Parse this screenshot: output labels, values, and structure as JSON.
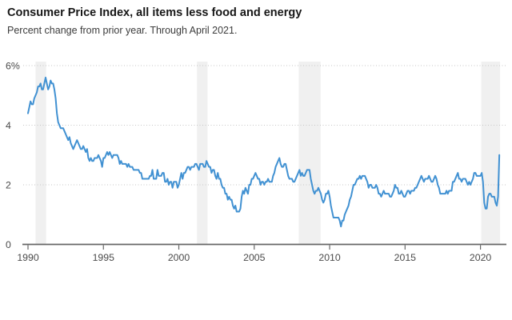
{
  "header": {
    "title": "Consumer Price Index, all items less food and energy",
    "subtitle": "Percent change from prior year. Through April 2021."
  },
  "colors": {
    "line": "#4191d2",
    "recession_band": "#f0f0f0",
    "gridline": "#c6c6c6",
    "axis": "#666666",
    "tick_label": "#4a4a4a",
    "title": "#161616",
    "subtitle": "#3b3b3b",
    "background": "#ffffff"
  },
  "chart_data": {
    "type": "line",
    "title": "Consumer Price Index, all items less food and energy",
    "subtitle": "Percent change from prior year. Through April 2021.",
    "ylabel": "Percent change from prior year",
    "xlabel": "",
    "unit": "%",
    "frequency": "monthly",
    "ylim": [
      0,
      6
    ],
    "y_ticks": [
      0,
      2,
      4,
      6
    ],
    "y_tick_labels": [
      "0",
      "2",
      "4",
      "6%"
    ],
    "x_ticks": [
      1990,
      1995,
      2000,
      2005,
      2010,
      2015,
      2020
    ],
    "x_tick_labels": [
      "1990",
      "1995",
      "2000",
      "2005",
      "2010",
      "2015",
      "2020"
    ],
    "grid": true,
    "legend": "none",
    "recession_bands": [
      [
        1990.5,
        1991.2
      ],
      [
        2001.2,
        2001.9
      ],
      [
        2007.95,
        2009.4
      ],
      [
        2020.05,
        2021.3
      ]
    ],
    "series": [
      {
        "name": "Core CPI, percent change from prior year",
        "start": "1990-01",
        "end": "2021-04",
        "values": [
          4.4,
          4.6,
          4.8,
          4.7,
          4.7,
          4.9,
          5.0,
          5.1,
          5.3,
          5.3,
          5.4,
          5.2,
          5.2,
          5.4,
          5.6,
          5.4,
          5.2,
          5.3,
          5.5,
          5.4,
          5.4,
          5.2,
          4.9,
          4.4,
          4.1,
          4.0,
          3.9,
          3.9,
          3.9,
          3.8,
          3.7,
          3.6,
          3.5,
          3.6,
          3.4,
          3.3,
          3.2,
          3.3,
          3.4,
          3.5,
          3.4,
          3.3,
          3.2,
          3.2,
          3.3,
          3.2,
          3.1,
          3.2,
          2.9,
          2.8,
          2.9,
          2.8,
          2.8,
          2.9,
          2.9,
          2.9,
          3.0,
          2.9,
          2.8,
          2.6,
          2.9,
          2.9,
          3.0,
          3.1,
          3.0,
          3.1,
          3.0,
          2.9,
          3.0,
          3.0,
          3.0,
          3.0,
          2.9,
          2.7,
          2.8,
          2.7,
          2.7,
          2.7,
          2.7,
          2.6,
          2.7,
          2.6,
          2.6,
          2.6,
          2.5,
          2.5,
          2.5,
          2.5,
          2.5,
          2.4,
          2.4,
          2.2,
          2.2,
          2.2,
          2.2,
          2.2,
          2.2,
          2.3,
          2.3,
          2.5,
          2.2,
          2.2,
          2.2,
          2.5,
          2.3,
          2.3,
          2.3,
          2.4,
          2.4,
          2.1,
          2.1,
          2.2,
          2.0,
          2.1,
          2.1,
          1.9,
          2.1,
          2.1,
          2.1,
          1.9,
          2.0,
          2.2,
          2.4,
          2.2,
          2.4,
          2.4,
          2.5,
          2.6,
          2.6,
          2.5,
          2.6,
          2.6,
          2.6,
          2.7,
          2.7,
          2.6,
          2.5,
          2.7,
          2.7,
          2.7,
          2.6,
          2.6,
          2.8,
          2.7,
          2.6,
          2.6,
          2.4,
          2.5,
          2.5,
          2.3,
          2.2,
          2.4,
          2.2,
          2.2,
          2.0,
          1.9,
          1.9,
          1.7,
          1.7,
          1.5,
          1.6,
          1.5,
          1.5,
          1.3,
          1.2,
          1.3,
          1.1,
          1.1,
          1.1,
          1.2,
          1.6,
          1.8,
          1.7,
          1.9,
          1.8,
          1.7,
          2.0,
          2.0,
          2.2,
          2.2,
          2.3,
          2.4,
          2.3,
          2.2,
          2.2,
          2.0,
          2.1,
          2.1,
          2.0,
          2.1,
          2.1,
          2.2,
          2.1,
          2.1,
          2.1,
          2.3,
          2.4,
          2.6,
          2.7,
          2.8,
          2.9,
          2.7,
          2.6,
          2.6,
          2.7,
          2.7,
          2.5,
          2.3,
          2.2,
          2.2,
          2.2,
          2.1,
          2.1,
          2.2,
          2.3,
          2.4,
          2.5,
          2.3,
          2.4,
          2.3,
          2.3,
          2.4,
          2.5,
          2.5,
          2.5,
          2.2,
          2.0,
          1.8,
          1.7,
          1.8,
          1.8,
          1.9,
          1.8,
          1.7,
          1.5,
          1.4,
          1.5,
          1.7,
          1.7,
          1.8,
          1.6,
          1.3,
          1.1,
          0.9,
          0.9,
          0.9,
          0.9,
          0.9,
          0.8,
          0.6,
          0.8,
          0.8,
          1.0,
          1.1,
          1.2,
          1.3,
          1.5,
          1.6,
          1.8,
          2.0,
          2.0,
          2.1,
          2.2,
          2.2,
          2.3,
          2.2,
          2.3,
          2.3,
          2.3,
          2.2,
          2.1,
          1.9,
          2.0,
          2.0,
          1.9,
          1.9,
          1.9,
          2.0,
          1.9,
          1.7,
          1.7,
          1.6,
          1.7,
          1.8,
          1.7,
          1.7,
          1.7,
          1.7,
          1.6,
          1.6,
          1.7,
          1.8,
          2.0,
          1.9,
          1.9,
          1.7,
          1.7,
          1.8,
          1.7,
          1.6,
          1.6,
          1.7,
          1.8,
          1.8,
          1.7,
          1.8,
          1.8,
          1.8,
          1.9,
          1.9,
          2.0,
          2.1,
          2.2,
          2.3,
          2.2,
          2.1,
          2.2,
          2.2,
          2.2,
          2.3,
          2.2,
          2.1,
          2.1,
          2.2,
          2.3,
          2.2,
          2.0,
          1.9,
          1.7,
          1.7,
          1.7,
          1.7,
          1.7,
          1.8,
          1.7,
          1.8,
          1.8,
          1.8,
          2.1,
          2.1,
          2.2,
          2.3,
          2.4,
          2.2,
          2.2,
          2.1,
          2.2,
          2.2,
          2.2,
          2.1,
          2.0,
          2.1,
          2.0,
          2.1,
          2.2,
          2.4,
          2.4,
          2.3,
          2.3,
          2.3,
          2.3,
          2.4,
          2.1,
          1.4,
          1.2,
          1.2,
          1.6,
          1.7,
          1.7,
          1.6,
          1.6,
          1.6,
          1.4,
          1.3,
          1.6,
          3.0
        ]
      }
    ]
  }
}
